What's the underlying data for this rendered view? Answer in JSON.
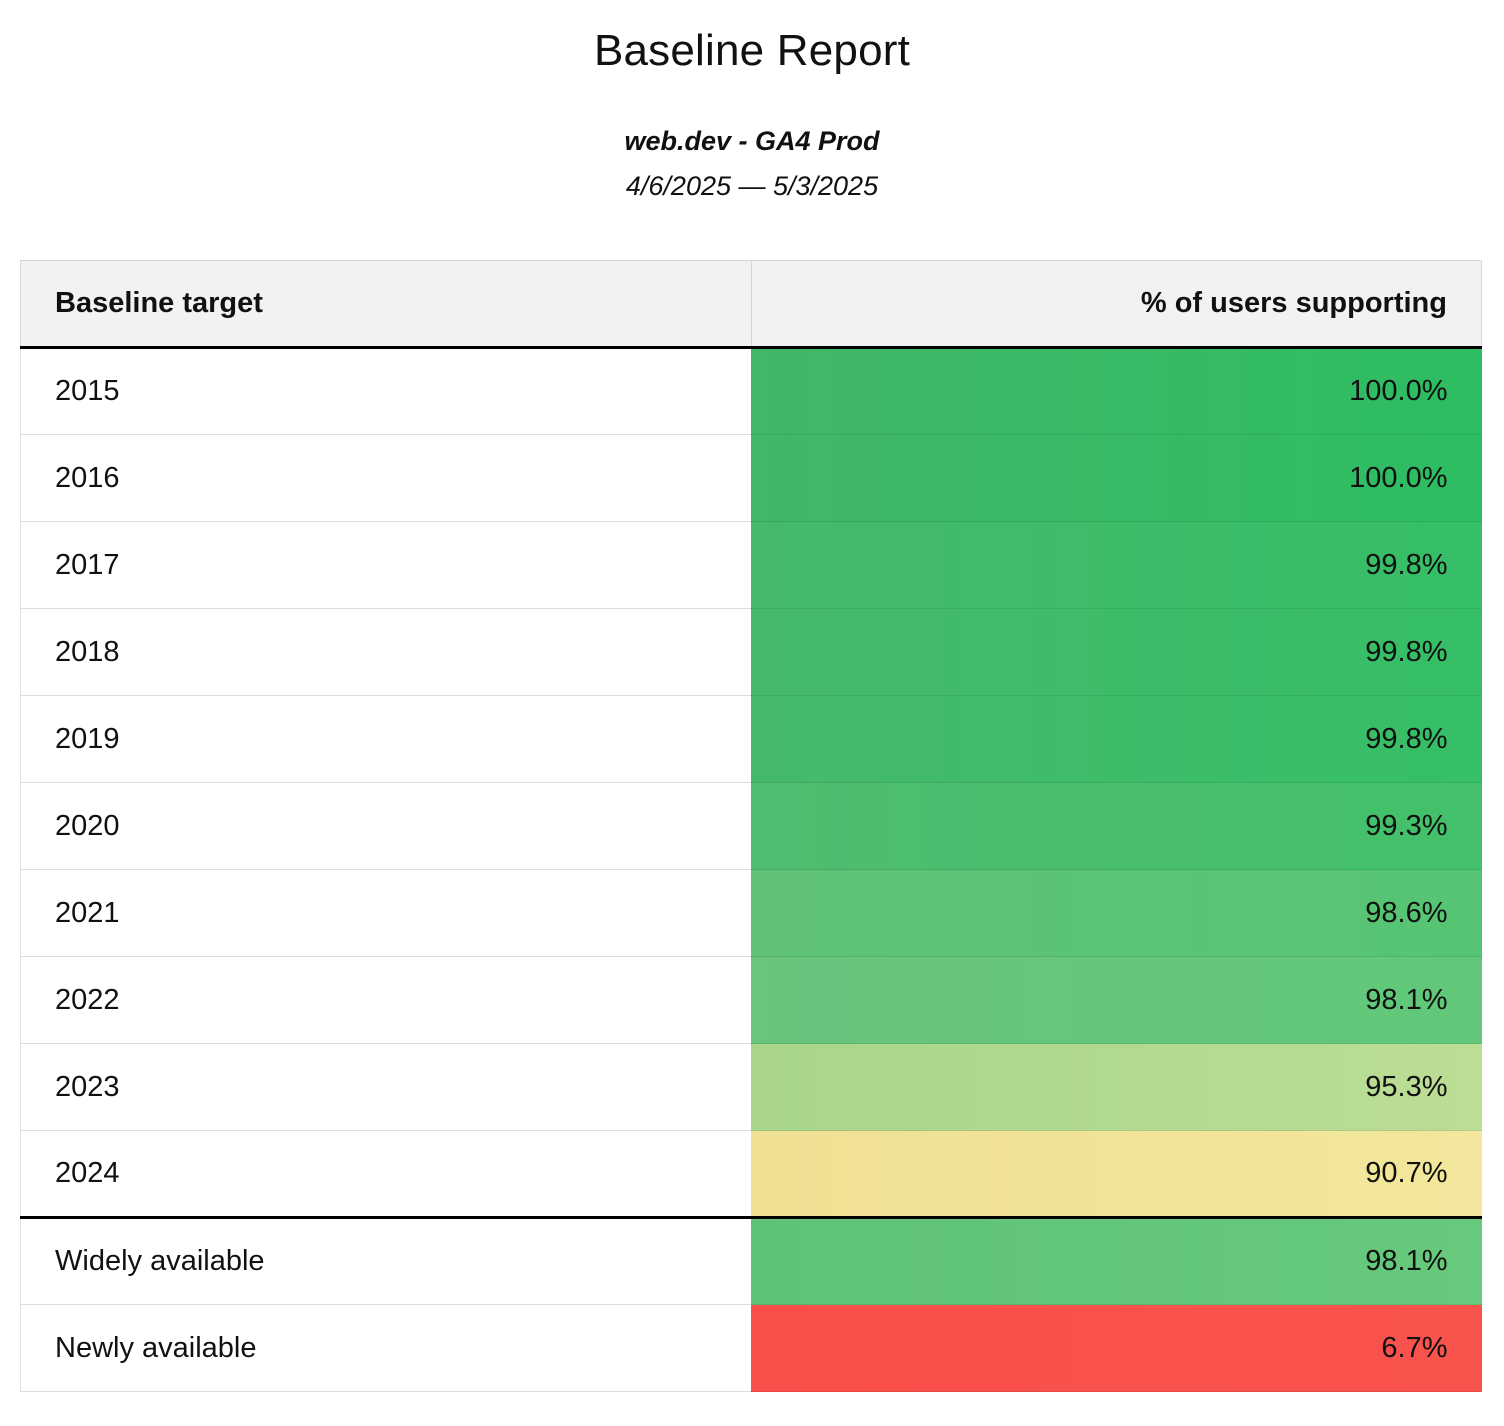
{
  "report": {
    "title": "Baseline Report",
    "subtitle": "web.dev - GA4 Prod",
    "date_range": "4/6/2025 — 5/3/2025"
  },
  "table": {
    "columns": [
      "Baseline target",
      "% of users supporting"
    ],
    "rows": [
      {
        "target": "2015",
        "value": "100.0%",
        "color_left": "#41b769",
        "color_right": "#2dbd61",
        "divider_above": false
      },
      {
        "target": "2016",
        "value": "100.0%",
        "color_left": "#41b769",
        "color_right": "#2dbd61",
        "divider_above": false
      },
      {
        "target": "2017",
        "value": "99.8%",
        "color_left": "#45b96b",
        "color_right": "#35bf66",
        "divider_above": false
      },
      {
        "target": "2018",
        "value": "99.8%",
        "color_left": "#45b96b",
        "color_right": "#35bf66",
        "divider_above": false
      },
      {
        "target": "2019",
        "value": "99.8%",
        "color_left": "#45b96b",
        "color_right": "#35bf66",
        "divider_above": false
      },
      {
        "target": "2020",
        "value": "99.3%",
        "color_left": "#50bc6f",
        "color_right": "#42c06a",
        "divider_above": false
      },
      {
        "target": "2021",
        "value": "98.6%",
        "color_left": "#5fc176",
        "color_right": "#56c573",
        "divider_above": false
      },
      {
        "target": "2022",
        "value": "98.1%",
        "color_left": "#69c47c",
        "color_right": "#61c879",
        "divider_above": false
      },
      {
        "target": "2023",
        "value": "95.3%",
        "color_left": "#a9d58b",
        "color_right": "#bcdd95",
        "divider_above": false
      },
      {
        "target": "2024",
        "value": "90.7%",
        "color_left": "#f0e092",
        "color_right": "#f2e79c",
        "divider_above": false
      },
      {
        "target": "Widely available",
        "value": "98.1%",
        "color_left": "#5fc376",
        "color_right": "#66c97b",
        "divider_above": true
      },
      {
        "target": "Newly available",
        "value": "6.7%",
        "color_left": "#f94f4a",
        "color_right": "#f9534d",
        "divider_above": false
      }
    ]
  },
  "chart_data": {
    "type": "table",
    "title": "Baseline Report",
    "subtitle": "web.dev - GA4 Prod",
    "date_range": "4/6/2025 — 5/3/2025",
    "columns": [
      "Baseline target",
      "% of users supporting"
    ],
    "rows": [
      [
        "2015",
        100.0
      ],
      [
        "2016",
        100.0
      ],
      [
        "2017",
        99.8
      ],
      [
        "2018",
        99.8
      ],
      [
        "2019",
        99.8
      ],
      [
        "2020",
        99.3
      ],
      [
        "2021",
        98.6
      ],
      [
        "2022",
        98.1
      ],
      [
        "2023",
        95.3
      ],
      [
        "2024",
        90.7
      ],
      [
        "Widely available",
        98.1
      ],
      [
        "Newly available",
        6.7
      ]
    ],
    "value_unit": "%",
    "value_range": [
      0,
      100
    ],
    "color_scale": "red-yellow-green heatmap on value column"
  }
}
